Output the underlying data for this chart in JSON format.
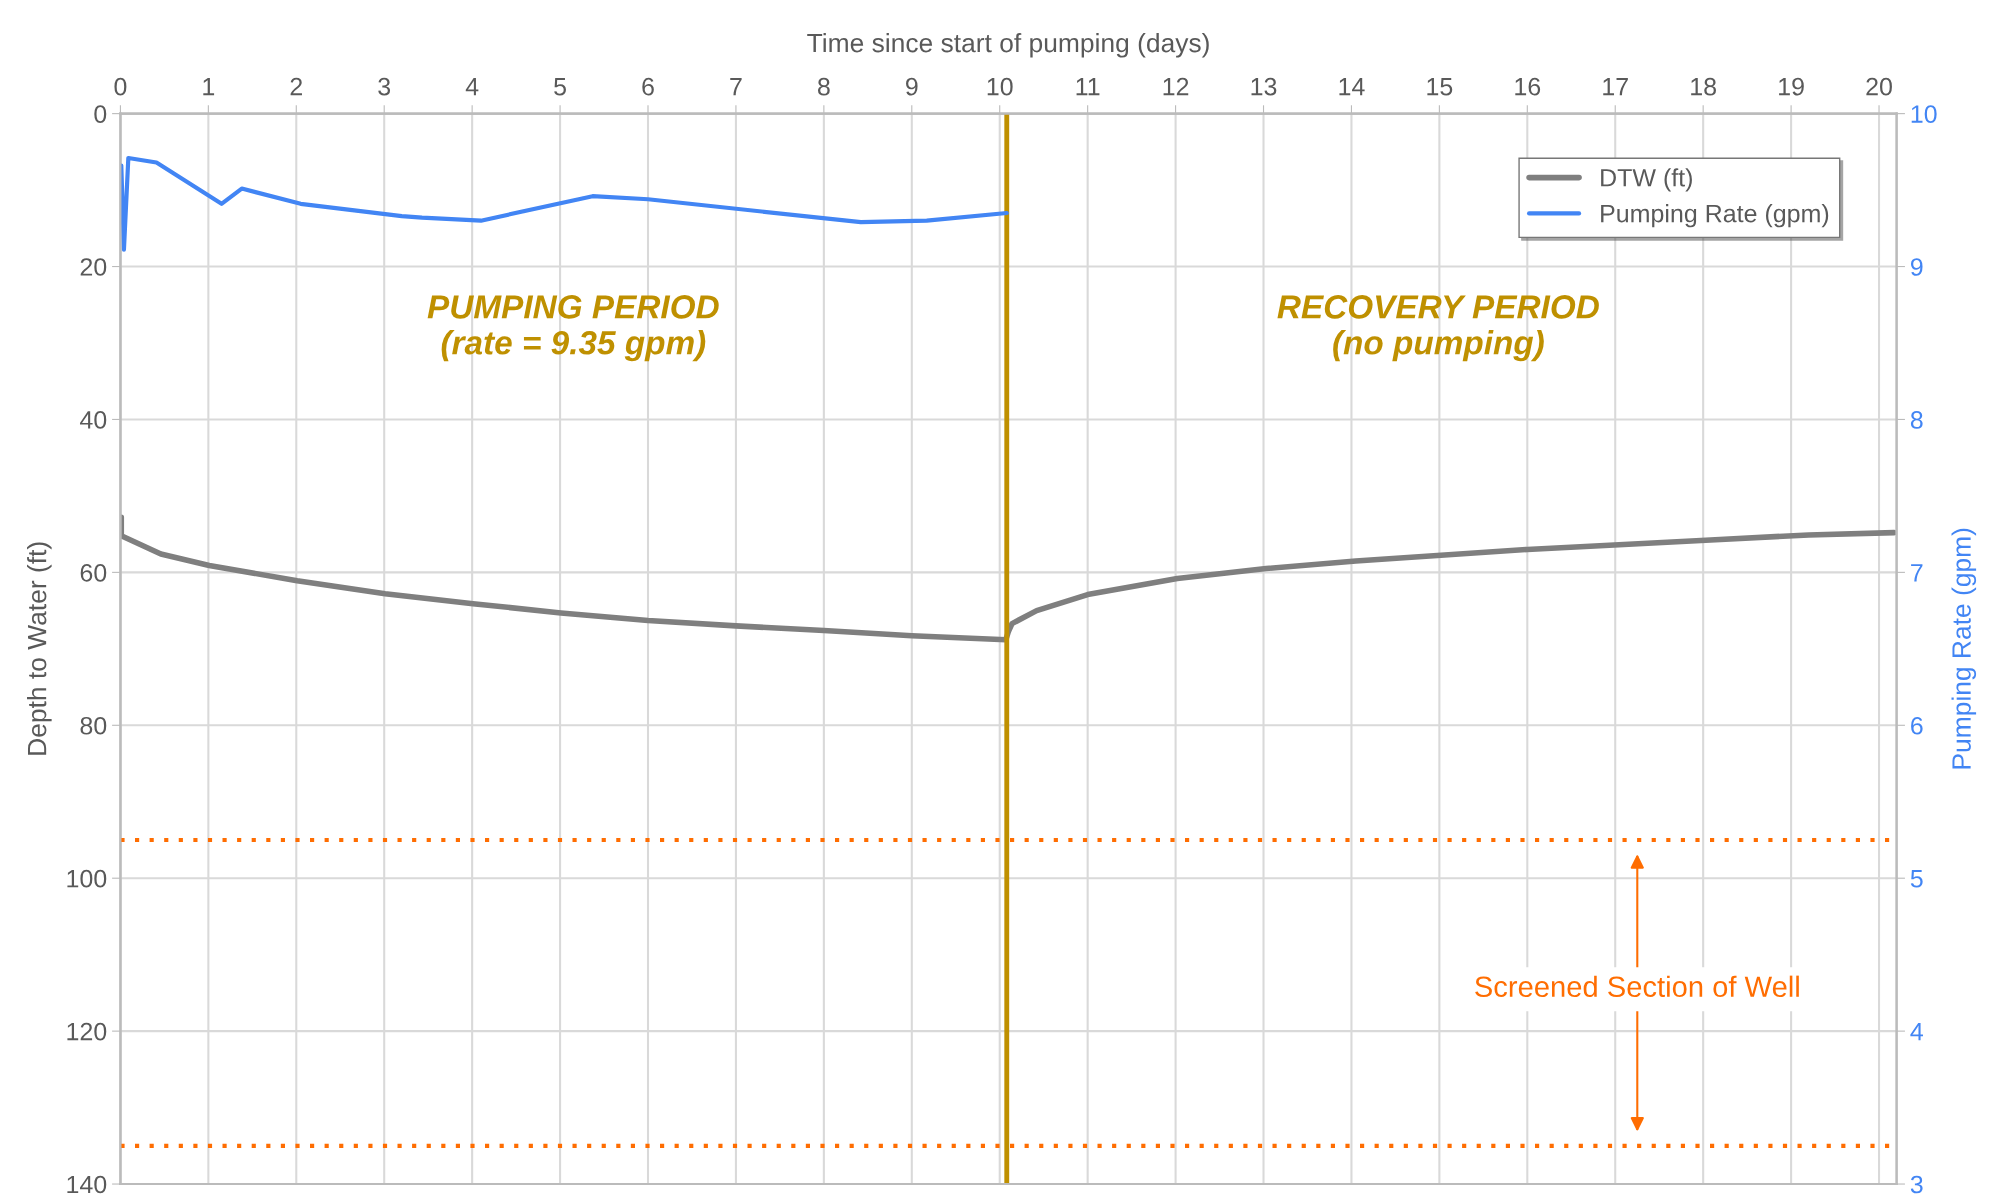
{
  "chart_data": {
    "type": "line",
    "xlabel": "Time since start of pumping (days)",
    "ylabel": "Depth to Water (ft)",
    "y2label": "Pumping Rate (gpm)",
    "xlim": [
      0,
      20.2
    ],
    "xticks": [
      0,
      1,
      2,
      3,
      4,
      5,
      6,
      7,
      8,
      9,
      10,
      11,
      12,
      13,
      14,
      15,
      16,
      17,
      18,
      19,
      20
    ],
    "ylim": [
      140,
      0
    ],
    "yticks": [
      0,
      20,
      40,
      60,
      80,
      100,
      120,
      140
    ],
    "y2lim": [
      3,
      10
    ],
    "y2ticks": [
      3,
      4,
      5,
      6,
      7,
      8,
      9,
      10
    ],
    "grid": true,
    "legend": "top right",
    "line_style": "solid",
    "marker": "none",
    "series": [
      {
        "name": "DTW (ft)",
        "color": "#7f7f7f",
        "x": [
          0.01,
          0.01,
          0.46,
          1.01,
          2.01,
          3.01,
          4.01,
          5.01,
          6.0,
          7.0,
          8.0,
          9.0,
          10.07,
          10.1,
          10.14,
          10.42,
          11.0,
          12.02,
          13.03,
          14.05,
          16.0,
          18.03,
          19.2,
          20.17
        ],
        "values": [
          52.8,
          55.2,
          57.6,
          59.1,
          61.1,
          62.8,
          64.1,
          65.3,
          66.3,
          67.0,
          67.6,
          68.3,
          68.8,
          67.7,
          66.7,
          65.0,
          62.9,
          60.8,
          59.5,
          58.5,
          57.0,
          55.8,
          55.1,
          54.8
        ]
      },
      {
        "name": "Pumping Rate (gpm)",
        "color": "#4285f4",
        "axis": "y2",
        "x": [
          0.01,
          0.04,
          0.09,
          0.41,
          1.15,
          1.38,
          2.05,
          3.2,
          3.43,
          4.1,
          5.37,
          6.0,
          8.42,
          9.17,
          10.08
        ],
        "values": [
          9.66,
          9.11,
          9.71,
          9.68,
          9.41,
          9.51,
          9.41,
          9.33,
          9.32,
          9.3,
          9.46,
          9.44,
          9.29,
          9.3,
          9.35
        ]
      }
    ],
    "ref_lines": [
      {
        "axis": "x",
        "value": 10.08,
        "color": "#bf9000",
        "line_style": "solid"
      },
      {
        "axis": "y",
        "value": 95,
        "color": "#ff6d01",
        "line_style": "dotted"
      },
      {
        "axis": "y",
        "value": 135,
        "color": "#ff6d01",
        "line_style": "dotted"
      }
    ],
    "annotations": [
      "PUMPING PERIOD\n(rate = 9.35 gpm)",
      "RECOVERY PERIOD\n(no pumping)",
      "Screened Section of Well"
    ]
  }
}
